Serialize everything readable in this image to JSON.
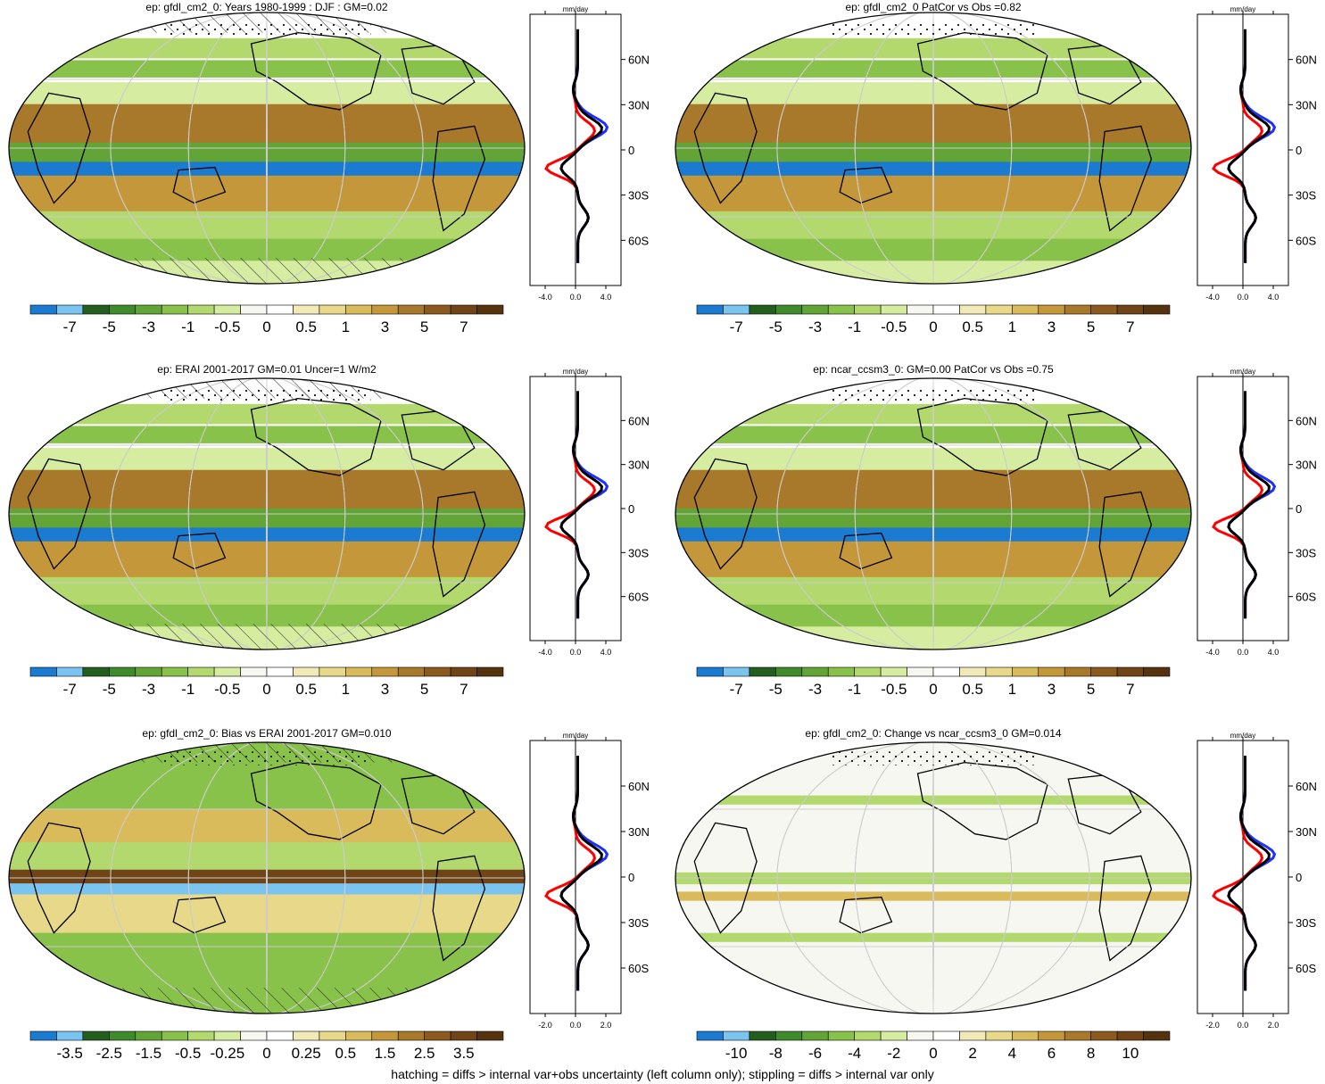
{
  "footer_note": "hatching = diffs > internal var+obs uncertainty (left column only); stippling = diffs > internal var only",
  "colors": {
    "palette": [
      "#1a7bd0",
      "#7cc4f0",
      "#245e1e",
      "#3f8a2a",
      "#62a436",
      "#89c24a",
      "#b2d86e",
      "#d6eca0",
      "#f7f7f2",
      "#ffffff",
      "#f2e9b8",
      "#e8d88a",
      "#d9bb5c",
      "#c4983a",
      "#a8792a",
      "#8c5a1e",
      "#6f4416",
      "#55330f"
    ],
    "obs_line": "#ff0000",
    "model_line": "#1f2fff",
    "mean_line": "#000000"
  },
  "lat_ticks": [
    "60N",
    "30N",
    "0",
    "30S",
    "60S"
  ],
  "profile_units": "mm/day",
  "panels": [
    {
      "id": "p1",
      "title": "ep: gfdl_cm2_0: Years 1980-1999 : DJF : GM=0.02",
      "colorbar_labels": [
        "-7",
        "-5",
        "-3",
        "-1",
        "-0.5",
        "0",
        "0.5",
        "1",
        "3",
        "5",
        "7"
      ],
      "profile_x_ticks": [
        "-4.0",
        "0.0",
        "4.0"
      ],
      "profile_xlim": [
        -6,
        6
      ]
    },
    {
      "id": "p2",
      "title": "ep: gfdl_cm2_0 PatCor vs Obs =0.82",
      "colorbar_labels": [
        "-7",
        "-5",
        "-3",
        "-1",
        "-0.5",
        "0",
        "0.5",
        "1",
        "3",
        "5",
        "7"
      ],
      "profile_x_ticks": [
        "-4.0",
        "0.0",
        "4.0"
      ],
      "profile_xlim": [
        -6,
        6
      ]
    },
    {
      "id": "p3",
      "title": "ep: ERAI 2001-2017 GM=0.01 Uncer=1 W/m2",
      "colorbar_labels": [
        "-7",
        "-5",
        "-3",
        "-1",
        "-0.5",
        "0",
        "0.5",
        "1",
        "3",
        "5",
        "7"
      ],
      "profile_x_ticks": [
        "-4.0",
        "0.0",
        "4.0"
      ],
      "profile_xlim": [
        -6,
        6
      ]
    },
    {
      "id": "p4",
      "title": "ep: ncar_ccsm3_0: GM=0.00 PatCor vs Obs =0.75",
      "colorbar_labels": [
        "-7",
        "-5",
        "-3",
        "-1",
        "-0.5",
        "0",
        "0.5",
        "1",
        "3",
        "5",
        "7"
      ],
      "profile_x_ticks": [
        "-4.0",
        "0.0",
        "4.0"
      ],
      "profile_xlim": [
        -6,
        6
      ]
    },
    {
      "id": "p5",
      "title": "ep: gfdl_cm2_0: Bias vs ERAI 2001-2017 GM=0.010",
      "colorbar_labels": [
        "-3.5",
        "-2.5",
        "-1.5",
        "-0.5",
        "-0.25",
        "0",
        "0.25",
        "0.5",
        "1.5",
        "2.5",
        "3.5"
      ],
      "profile_x_ticks": [
        "-2.0",
        "0.0",
        "2.0"
      ],
      "profile_xlim": [
        -3,
        3
      ]
    },
    {
      "id": "p6",
      "title": "ep: gfdl_cm2_0: Change vs ncar_ccsm3_0 GM=0.014",
      "colorbar_labels": [
        "-10",
        "-8",
        "-6",
        "-4",
        "-2",
        "0",
        "2",
        "4",
        "6",
        "8",
        "10"
      ],
      "profile_x_ticks": [
        "-2.0",
        "0.0",
        "2.0"
      ],
      "profile_xlim": [
        -3,
        3
      ]
    }
  ]
}
